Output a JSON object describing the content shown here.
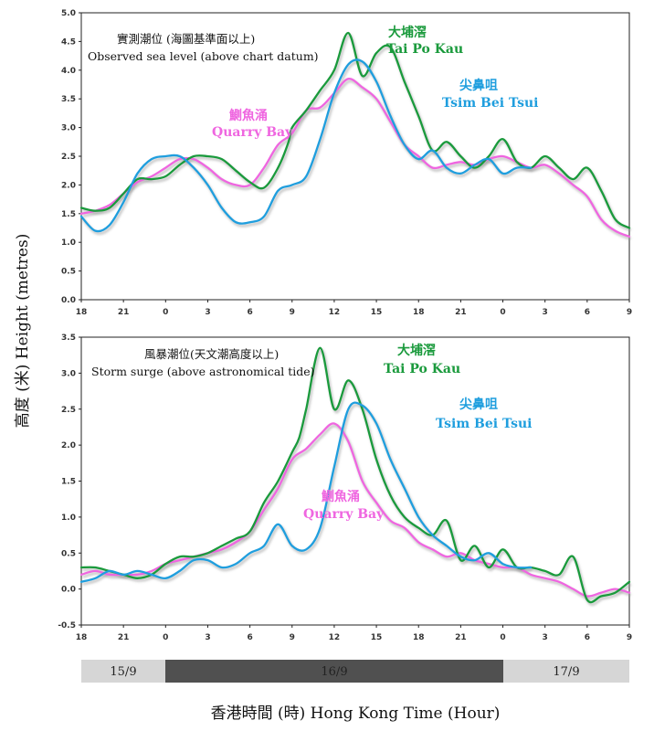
{
  "y_axis_label": "高度 (米) Height (metres)",
  "x_axis_label": "香港時間 (時)    Hong Kong Time (Hour)",
  "x_tick_labels": [
    "18",
    "21",
    "0",
    "3",
    "6",
    "9",
    "12",
    "15",
    "18",
    "21",
    "0",
    "3",
    "6",
    "9"
  ],
  "dates": [
    "15/9",
    "16/9",
    "17/9"
  ],
  "colors": {
    "Tai Po Kau": "#1a9a3c",
    "Tsim Bei Tsui": "#1f9ede",
    "Quarry Bay": "#ef66e0"
  },
  "chart_data": [
    {
      "type": "line",
      "title_zh": "實測潮位 (海圖基準面以上)",
      "title": "Observed sea level (above chart datum)",
      "x_unit": "hours from 18:00 15/9",
      "xlim": [
        0,
        39
      ],
      "ylim": [
        0.0,
        5.0
      ],
      "y_ticks": [
        "0.0",
        "0.5",
        "1.0",
        "1.5",
        "2.0",
        "2.5",
        "3.0",
        "3.5",
        "4.0",
        "4.5",
        "5.0"
      ],
      "series": [
        {
          "name": "Tai Po Kau",
          "name_zh": "大埔滘",
          "label": "Tai Po Kau",
          "label_zh": "大埔滘",
          "x": [
            0,
            1,
            2,
            3,
            4,
            5,
            6,
            7,
            8,
            9,
            10,
            11,
            12,
            13,
            14,
            14.75,
            15,
            16,
            17,
            18,
            19,
            20,
            21,
            22,
            23,
            24,
            25,
            26,
            27,
            28,
            29,
            30,
            31,
            32,
            33,
            34,
            35,
            36,
            37,
            38,
            39
          ],
          "y": [
            1.6,
            1.55,
            1.6,
            1.85,
            2.1,
            2.1,
            2.15,
            2.35,
            2.5,
            2.5,
            2.45,
            2.25,
            2.05,
            1.95,
            2.3,
            2.75,
            3.0,
            3.3,
            3.65,
            4.0,
            4.65,
            3.9,
            4.3,
            4.4,
            3.8,
            3.2,
            2.6,
            2.75,
            2.5,
            2.3,
            2.5,
            2.8,
            2.4,
            2.3,
            2.5,
            2.3,
            2.1,
            2.3,
            1.9,
            1.4,
            1.25
          ]
        },
        {
          "name": "Tsim Bei Tsui",
          "name_zh": "尖鼻咀",
          "label": "Tsim Bei Tsui",
          "label_zh": "尖鼻咀",
          "x": [
            0,
            1,
            2,
            3,
            4,
            5,
            6,
            7,
            8,
            9,
            10,
            11,
            12,
            13,
            14,
            15,
            16,
            17,
            18,
            19,
            20,
            21,
            22,
            23,
            24,
            25,
            26,
            27,
            28,
            29,
            30,
            31,
            32
          ],
          "y": [
            1.45,
            1.2,
            1.3,
            1.7,
            2.2,
            2.45,
            2.5,
            2.5,
            2.3,
            2.0,
            1.6,
            1.35,
            1.35,
            1.45,
            1.9,
            2.0,
            2.15,
            2.8,
            3.6,
            4.1,
            4.15,
            3.8,
            3.2,
            2.7,
            2.45,
            2.6,
            2.3,
            2.2,
            2.35,
            2.45,
            2.2,
            2.3,
            2.3
          ]
        },
        {
          "name": "Quarry Bay",
          "name_zh": "鰂魚涌",
          "label": "Quarry Bay",
          "label_zh": "鰂魚涌",
          "x": [
            0,
            1,
            2,
            3,
            4,
            5,
            6,
            7,
            8,
            9,
            10,
            11,
            12,
            13,
            14,
            15,
            16,
            17,
            18,
            19,
            20,
            21,
            22,
            23,
            24,
            25,
            26,
            27,
            28,
            29,
            30,
            31,
            32,
            33,
            34,
            35,
            36,
            37,
            38,
            39
          ],
          "y": [
            1.5,
            1.55,
            1.65,
            1.85,
            2.05,
            2.15,
            2.3,
            2.45,
            2.45,
            2.3,
            2.1,
            2.0,
            2.0,
            2.3,
            2.7,
            2.9,
            3.3,
            3.35,
            3.6,
            3.85,
            3.7,
            3.5,
            3.1,
            2.7,
            2.5,
            2.3,
            2.35,
            2.4,
            2.35,
            2.45,
            2.5,
            2.4,
            2.3,
            2.35,
            2.2,
            2.0,
            1.8,
            1.4,
            1.2,
            1.1
          ]
        }
      ]
    },
    {
      "type": "line",
      "title_zh": "風暴潮位(天文潮高度以上)",
      "title": "Storm surge (above astronomical tide)",
      "x_unit": "hours from 18:00 15/9",
      "xlim": [
        0,
        39
      ],
      "ylim": [
        -0.5,
        3.5
      ],
      "y_ticks": [
        "-0.5",
        "0.0",
        "0.5",
        "1.0",
        "1.5",
        "2.0",
        "2.5",
        "3.0",
        "3.5"
      ],
      "series": [
        {
          "name": "Tai Po Kau",
          "name_zh": "大埔滘",
          "label": "Tai Po Kau",
          "label_zh": "大埔滘",
          "x": [
            0,
            1,
            2,
            3,
            4,
            5,
            6,
            7,
            8,
            9,
            10,
            11,
            12,
            13,
            14,
            15,
            15.5,
            16,
            17,
            18,
            19,
            20,
            21,
            22,
            23,
            24,
            25,
            26,
            27,
            28,
            29,
            30,
            31,
            32,
            33,
            34,
            35,
            36,
            37,
            38,
            39
          ],
          "y": [
            0.3,
            0.3,
            0.25,
            0.2,
            0.15,
            0.2,
            0.35,
            0.45,
            0.45,
            0.5,
            0.6,
            0.7,
            0.8,
            1.2,
            1.5,
            1.9,
            2.1,
            2.5,
            3.35,
            2.5,
            2.9,
            2.5,
            1.8,
            1.3,
            1.0,
            0.85,
            0.75,
            0.95,
            0.4,
            0.6,
            0.3,
            0.55,
            0.3,
            0.3,
            0.25,
            0.2,
            0.45,
            -0.15,
            -0.1,
            -0.05,
            0.1
          ]
        },
        {
          "name": "Tsim Bei Tsui",
          "name_zh": "尖鼻咀",
          "label": "Tsim Bei Tsui",
          "label_zh": "尖鼻咀",
          "x": [
            0,
            1,
            2,
            3,
            4,
            5,
            6,
            7,
            8,
            9,
            10,
            11,
            12,
            13,
            14,
            15,
            16,
            17,
            18,
            19,
            20,
            21,
            22,
            23,
            24,
            25,
            26,
            27,
            28,
            29,
            30,
            31,
            32
          ],
          "y": [
            0.1,
            0.15,
            0.25,
            0.2,
            0.25,
            0.2,
            0.15,
            0.25,
            0.4,
            0.4,
            0.3,
            0.35,
            0.5,
            0.6,
            0.9,
            0.6,
            0.55,
            0.85,
            1.7,
            2.5,
            2.55,
            2.3,
            1.8,
            1.4,
            1.0,
            0.75,
            0.6,
            0.45,
            0.4,
            0.5,
            0.35,
            0.3,
            0.3
          ]
        },
        {
          "name": "Quarry Bay",
          "name_zh": "鰂魚涌",
          "label": "Quarry Bay",
          "label_zh": "鰂魚涌",
          "x": [
            0,
            1,
            2,
            3,
            4,
            5,
            6,
            7,
            8,
            9,
            10,
            11,
            12,
            13,
            14,
            15,
            16,
            17,
            18,
            19,
            20,
            21,
            22,
            23,
            24,
            25,
            26,
            27,
            28,
            29,
            30,
            31,
            32,
            33,
            34,
            35,
            36,
            37,
            38,
            39
          ],
          "y": [
            0.2,
            0.25,
            0.2,
            0.2,
            0.2,
            0.25,
            0.35,
            0.4,
            0.45,
            0.5,
            0.55,
            0.65,
            0.8,
            1.1,
            1.4,
            1.8,
            1.95,
            2.15,
            2.3,
            2.05,
            1.5,
            1.2,
            0.95,
            0.85,
            0.65,
            0.55,
            0.45,
            0.5,
            0.4,
            0.35,
            0.3,
            0.3,
            0.2,
            0.15,
            0.1,
            0.0,
            -0.1,
            -0.05,
            0.0,
            -0.05
          ]
        }
      ]
    }
  ]
}
